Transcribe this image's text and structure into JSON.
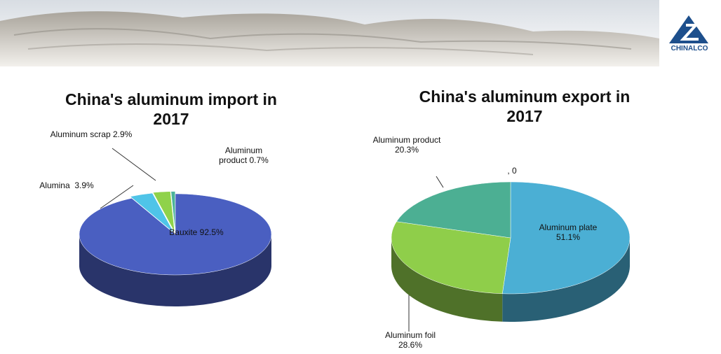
{
  "logo": "CHINALCO",
  "chart_data": [
    {
      "type": "pie",
      "title": "China's aluminum import in 2017",
      "categories": [
        "Bauxite",
        "Alumina",
        "Aluminum scrap",
        "Aluminum product"
      ],
      "values": [
        92.5,
        3.9,
        2.9,
        0.7
      ],
      "value_labels": [
        "92.5%",
        "3.9%",
        "2.9%",
        "0.7%"
      ],
      "colors": [
        "#4a5fc1",
        "#4fc4e8",
        "#8fd24a",
        "#4bb39a"
      ]
    },
    {
      "type": "pie",
      "title": "China's aluminum export in 2017",
      "categories": [
        "Aluminum plate",
        "Aluminum foil",
        "Aluminum product",
        null
      ],
      "values": [
        51.1,
        28.6,
        20.3,
        0
      ],
      "value_labels": [
        "51.1%",
        "28.6%",
        "20.3%",
        ", 0"
      ],
      "colors": [
        "#4bafd4",
        "#8fce4a",
        "#4caf93",
        "#4a5fc1"
      ]
    }
  ]
}
